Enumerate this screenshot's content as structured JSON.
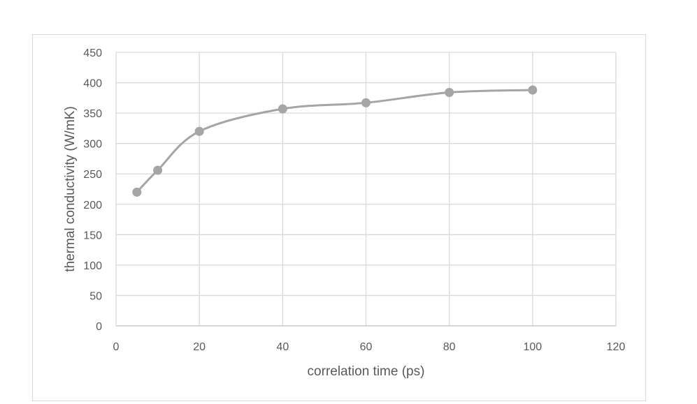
{
  "chart_data": {
    "type": "scatter",
    "title": "",
    "xlabel": "correlation time (ps)",
    "ylabel": "thermal conductivity (W/mK)",
    "xlim": [
      0,
      120
    ],
    "ylim": [
      0,
      450
    ],
    "xticks": [
      0,
      20,
      40,
      60,
      80,
      100,
      120
    ],
    "yticks": [
      0,
      50,
      100,
      150,
      200,
      250,
      300,
      350,
      400,
      450
    ],
    "grid": true,
    "legend": "none",
    "smooth_line": true,
    "series": [
      {
        "color": "#a5a5a5",
        "x": [
          5,
          10,
          20,
          40,
          60,
          80,
          100
        ],
        "y": [
          220,
          256,
          320,
          357,
          367,
          384,
          388
        ]
      }
    ]
  }
}
